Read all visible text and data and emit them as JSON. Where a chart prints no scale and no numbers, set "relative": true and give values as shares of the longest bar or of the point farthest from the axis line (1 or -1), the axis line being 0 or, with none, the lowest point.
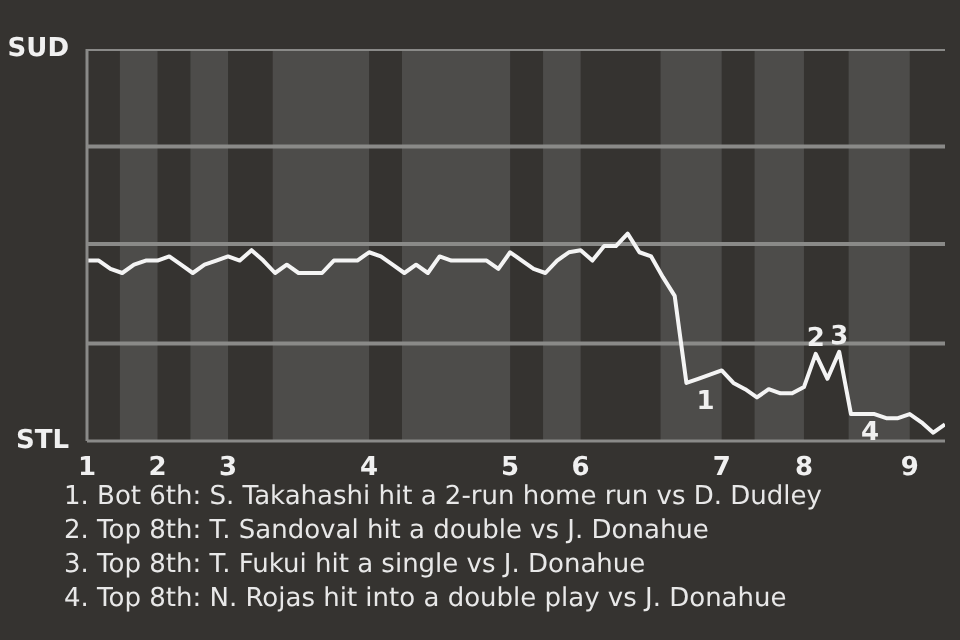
{
  "chart_data": {
    "type": "line",
    "relative": true,
    "categories": [
      "1",
      null,
      null,
      null,
      null,
      null,
      "2",
      null,
      null,
      null,
      null,
      null,
      "3",
      null,
      null,
      null,
      null,
      null,
      null,
      null,
      null,
      null,
      null,
      null,
      "4",
      null,
      null,
      null,
      null,
      null,
      null,
      null,
      null,
      null,
      null,
      null,
      "5",
      null,
      null,
      null,
      null,
      null,
      "6",
      null,
      null,
      null,
      null,
      null,
      null,
      null,
      null,
      null,
      null,
      null,
      "7",
      null,
      null,
      null,
      null,
      null,
      null,
      "8",
      null,
      null,
      null,
      null,
      null,
      null,
      null,
      null,
      "9",
      null,
      null,
      null
    ],
    "series": [
      {
        "color": "#f4f4f4",
        "values": [
          0.87,
          0.87,
          0.83,
          0.81,
          0.85,
          0.87,
          0.87,
          0.89,
          0.85,
          0.81,
          0.85,
          0.87,
          0.89,
          0.87,
          0.92,
          0.87,
          0.81,
          0.85,
          0.81,
          0.81,
          0.81,
          0.87,
          0.87,
          0.87,
          0.91,
          0.89,
          0.85,
          0.81,
          0.85,
          0.81,
          0.89,
          0.87,
          0.87,
          0.87,
          0.87,
          0.83,
          0.91,
          0.87,
          0.83,
          0.81,
          0.87,
          0.91,
          0.92,
          0.87,
          0.94,
          0.94,
          1,
          0.91,
          0.89,
          0.79,
          0.7,
          0.28,
          0.3,
          0.32,
          0.34,
          0.28,
          0.25,
          0.21,
          0.25,
          0.23,
          0.23,
          0.26,
          0.42,
          0.3,
          0.43,
          0.13,
          0.13,
          0.13,
          0.11,
          0.11,
          0.13,
          0.09,
          0.04,
          0.08
        ]
      }
    ],
    "ref_lines": [
      {
        "axis": "y",
        "value": 0.47,
        "color": "#8a8a88"
      },
      {
        "axis": "y",
        "value": 0.95,
        "color": "#8a8a88"
      },
      {
        "axis": "y",
        "value": 1.42,
        "color": "#8a8a88"
      },
      {
        "axis": "y",
        "value": 1.89,
        "color": "#8a8a88"
      }
    ],
    "annotations": [
      {
        "text": "SUD"
      },
      {
        "text": "STL"
      },
      {
        "text": "1",
        "y": 0.28
      },
      {
        "text": "2",
        "y": 0.42
      },
      {
        "text": "3",
        "y": 0.43
      },
      {
        "text": "4",
        "y": 0.13
      },
      "1. Bot 6th: S. Takahashi hit a 2-run home run vs D. Dudley",
      "2. Top 8th: T. Sandoval hit a double vs J. Donahue",
      "3. Top 8th: T. Fukui hit a single vs J. Donahue",
      "4. Top 8th: N. Rojas hit into a double play vs J. Donahue"
    ]
  }
}
